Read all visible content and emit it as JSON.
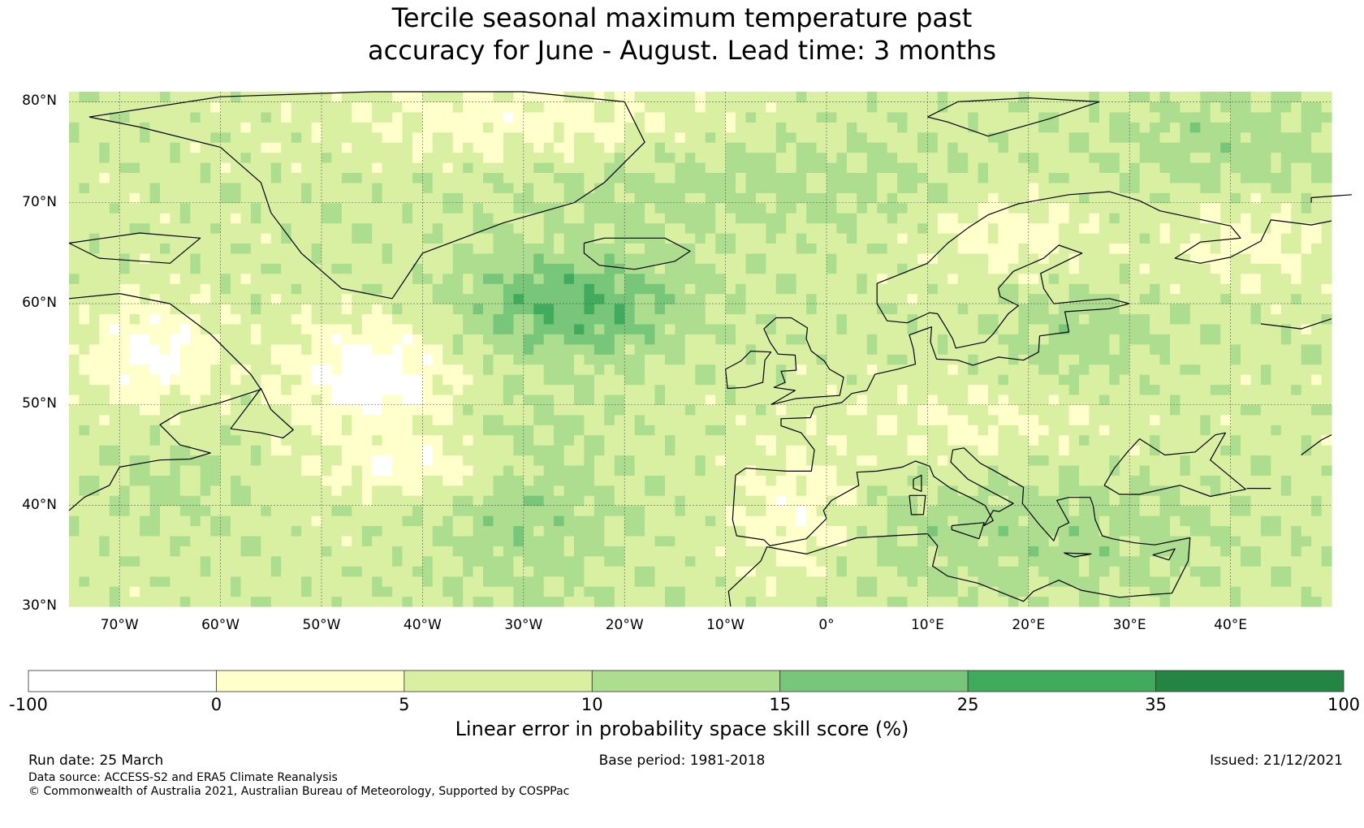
{
  "title": {
    "line1": "Tercile seasonal maximum temperature past",
    "line2": "accuracy for June - August. Lead time: 3 months"
  },
  "map": {
    "latitude_labels": [
      "80°N",
      "70°N",
      "60°N",
      "50°N",
      "40°N",
      "30°N"
    ],
    "latitude_values": [
      80,
      70,
      60,
      50,
      40,
      30
    ],
    "longitude_labels": [
      "70°W",
      "60°W",
      "50°W",
      "40°W",
      "30°W",
      "20°W",
      "10°W",
      "0°",
      "10°E",
      "20°E",
      "30°E",
      "40°E"
    ],
    "longitude_values": [
      -70,
      -60,
      -50,
      -40,
      -30,
      -20,
      -10,
      0,
      10,
      20,
      30,
      40
    ],
    "extent": {
      "lon_min": -75,
      "lon_max": 50,
      "lat_min": 30,
      "lat_max": 81
    },
    "gridlines": true,
    "coastlines": true
  },
  "colorbar": {
    "boundaries": [
      "-100",
      "0",
      "5",
      "10",
      "15",
      "25",
      "35",
      "100"
    ],
    "colors": [
      "#ffffff",
      "#ffffcc",
      "#d9f0a3",
      "#addd8e",
      "#78c679",
      "#41ab5d",
      "#238443"
    ],
    "label": "Linear error in probability space skill score (%)"
  },
  "footer": {
    "run_date": "Run date: 25 March",
    "base_period": "Base period: 1981-2018",
    "issued": "Issued: 21/12/2021",
    "data_source": "Data source: ACCESS-S2 and ERA5 Climate Reanalysis",
    "copyright": "© Commonwealth of Australia 2021, Australian Bureau of Meteorology, Supported by COSPPac"
  }
}
